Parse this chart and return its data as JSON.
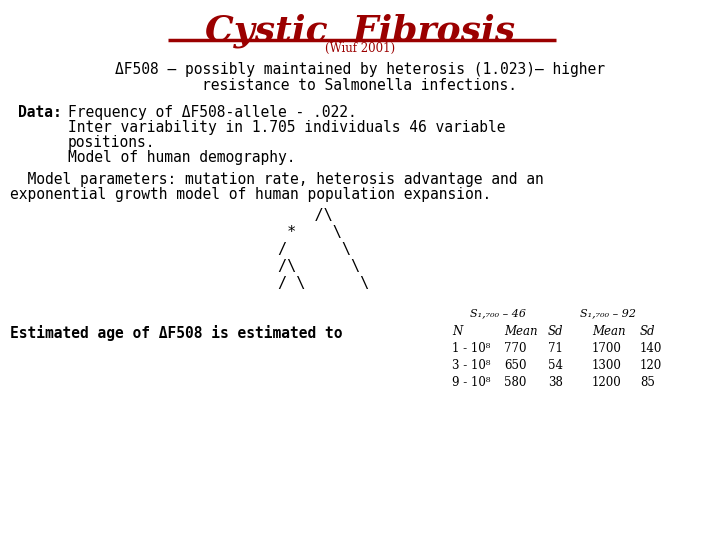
{
  "title": "Cystic  Fibrosis",
  "subtitle": "(Wiuf 2001)",
  "line1": "ΔF508 – possibly maintained by heterosis (1.023)– higher",
  "line2": "resistance to Salmonella infections.",
  "data_label": "Data:",
  "data_line1": "Frequency of ΔF508-allele - .022.",
  "data_line2": "Inter variability in 1.705 individuals 46 variable",
  "data_line3": "positions.",
  "data_line4": "Model of human demography.",
  "model_line1": "  Model parameters: mutation rate, heterosis advantage and an",
  "model_line2": "exponential growth model of human population expansion.",
  "tree_lines": [
    "     /\\",
    "  *    \\",
    " /      \\",
    "/\\       \\",
    "/ \\       \\"
  ],
  "bottom_line": "Estimated age of ΔF508 is estimated to",
  "table_header1": "S₁,₇₀₀ – 46",
  "table_header2": "S₁,₇₀₀ – 92",
  "table_cols": [
    "N",
    "Mean",
    "Sd",
    "Mean",
    "Sd"
  ],
  "table_rows": [
    [
      "1 - 10⁸",
      "770",
      "71",
      "1700",
      "140"
    ],
    [
      "3 - 10⁸",
      "650",
      "54",
      "1300",
      "120"
    ],
    [
      "9 - 10⁸",
      "580",
      "38",
      "1200",
      "85"
    ]
  ],
  "title_color": "#9b0000",
  "text_color": "#000000",
  "bg_color": "#ffffff",
  "title_fontsize": 26,
  "subtitle_fontsize": 8.5,
  "mono_fontsize": 10.5,
  "tree_fontsize": 11,
  "table_fontsize": 8.5
}
